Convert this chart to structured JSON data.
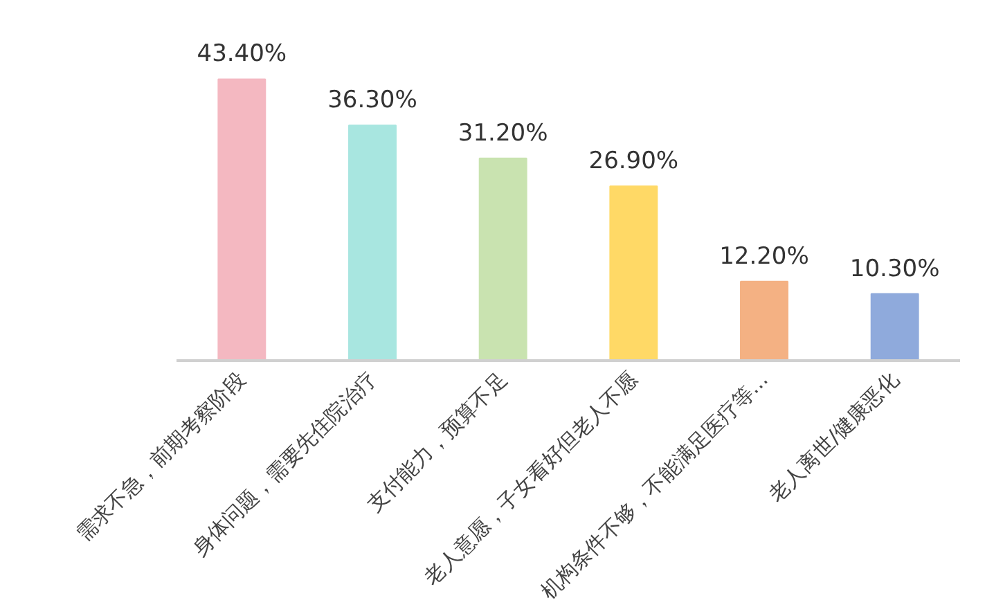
{
  "chart_data": {
    "type": "bar",
    "categories": [
      "需求不急，前期考察阶段",
      "身体问题，需要先住院治疗",
      "支付能力，预算不足",
      "老人意愿，子女看好但老人不愿",
      "机构条件不够，不能满足医疗等...",
      "老人离世/健康恶化"
    ],
    "values": [
      43.4,
      36.3,
      31.2,
      26.9,
      12.2,
      10.3
    ],
    "value_labels": [
      "43.40%",
      "36.30%",
      "31.20%",
      "26.90%",
      "12.20%",
      "10.30%"
    ],
    "colors": [
      "#f4b8c1",
      "#a8e6e0",
      "#c9e3b0",
      "#ffd966",
      "#f4b183",
      "#8faadc"
    ],
    "grid": false
  }
}
